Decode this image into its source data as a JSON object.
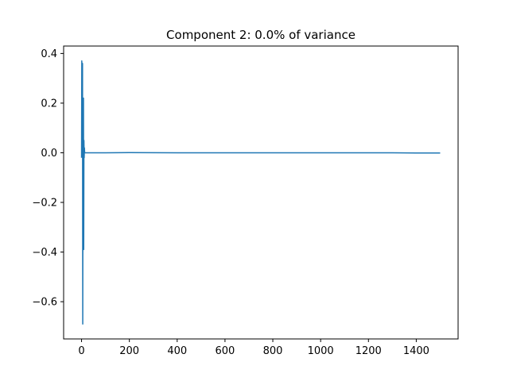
{
  "chart_data": {
    "type": "line",
    "title": "Component 2: 0.0% of variance",
    "xlabel": "",
    "ylabel": "",
    "xlim": [
      -75,
      1575
    ],
    "ylim": [
      -0.75,
      0.43
    ],
    "x_ticks": [
      0,
      200,
      400,
      600,
      800,
      1000,
      1200,
      1400
    ],
    "x_tick_labels": [
      "0",
      "200",
      "400",
      "600",
      "800",
      "1000",
      "1200",
      "1400"
    ],
    "y_ticks": [
      -0.6,
      -0.4,
      -0.2,
      0.0,
      0.2,
      0.4
    ],
    "y_tick_labels": [
      "−0.6",
      "−0.4",
      "−0.2",
      "0.0",
      "0.2",
      "0.4"
    ],
    "grid": false,
    "series": [
      {
        "color": "#1f77b4",
        "x": [
          0,
          1,
          2,
          3,
          4,
          5,
          6,
          7,
          8,
          9,
          10,
          11,
          12,
          13,
          14,
          15,
          20,
          40,
          100,
          200,
          400,
          600,
          800,
          1000,
          1200,
          1300,
          1400,
          1500
        ],
        "y": [
          -0.02,
          0.37,
          0.05,
          0.0,
          0.36,
          -0.69,
          0.2,
          -0.35,
          0.22,
          -0.39,
          0.05,
          -0.02,
          0.02,
          0.0,
          0.0,
          0.0,
          0.0,
          0.0,
          0.0,
          0.0005,
          0.0,
          0.0,
          0.0,
          0.0,
          0.0,
          0.0,
          -0.001,
          -0.001
        ]
      }
    ]
  }
}
